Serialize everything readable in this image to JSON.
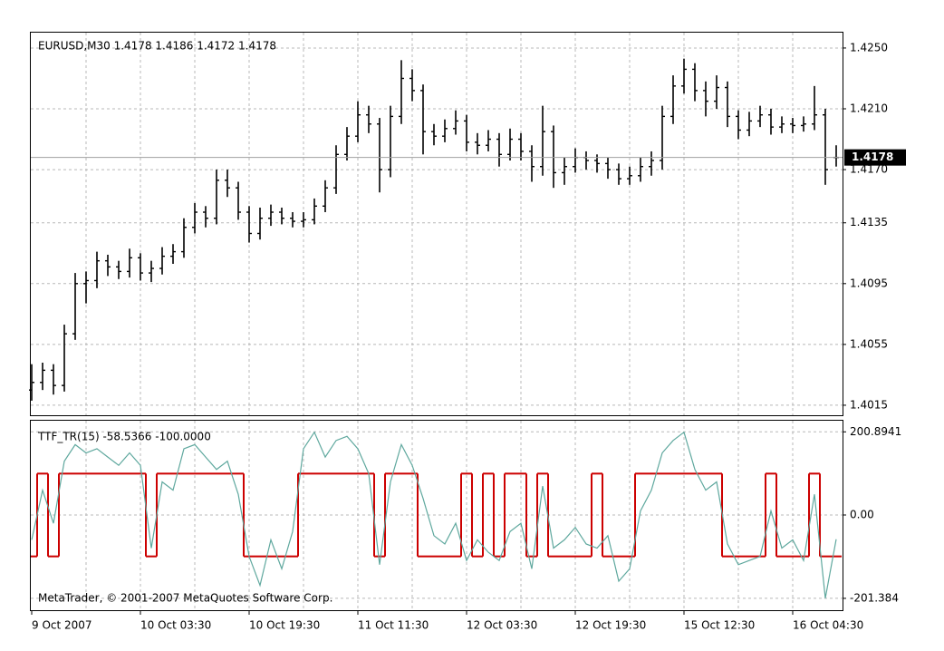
{
  "chart_data": [
    {
      "type": "ohlc",
      "title": "EURUSD,M30  1.4178 1.4186 1.4172 1.4178",
      "color": "#000000",
      "grid": true,
      "categories": [
        "9 Oct 2007",
        null,
        null,
        null,
        null,
        null,
        null,
        null,
        null,
        null,
        "10 Oct 03:30",
        null,
        null,
        null,
        null,
        null,
        null,
        null,
        null,
        null,
        "10 Oct 19:30",
        null,
        null,
        null,
        null,
        null,
        null,
        null,
        null,
        null,
        "11 Oct 11:30",
        null,
        null,
        null,
        null,
        null,
        null,
        null,
        null,
        null,
        "12 Oct 03:30",
        null,
        null,
        null,
        null,
        null,
        null,
        null,
        null,
        null,
        "12 Oct 19:30",
        null,
        null,
        null,
        null,
        null,
        null,
        null,
        null,
        null,
        "15 Oct 12:30",
        null,
        null,
        null,
        null,
        null,
        null,
        null,
        null,
        null,
        "16 Oct 04:30",
        null,
        null,
        null,
        null
      ],
      "open": [
        1.4025,
        1.403,
        1.4038,
        1.4028,
        1.4062,
        1.4095,
        1.4097,
        1.411,
        1.4106,
        1.4103,
        1.4112,
        1.4102,
        1.4105,
        1.4113,
        1.4116,
        1.4132,
        1.4142,
        1.4138,
        1.4163,
        1.4158,
        1.4142,
        1.4128,
        1.4138,
        1.4142,
        1.4138,
        1.4136,
        1.4137,
        1.4146,
        1.4158,
        1.418,
        1.4192,
        1.4206,
        1.42,
        1.417,
        1.4205,
        1.423,
        1.4222,
        1.4195,
        1.4192,
        1.4197,
        1.4202,
        1.4188,
        1.4186,
        1.419,
        1.418,
        1.419,
        1.4182,
        1.4172,
        1.4195,
        1.4168,
        1.4172,
        1.4178,
        1.4176,
        1.4174,
        1.417,
        1.4164,
        1.4166,
        1.4172,
        1.4176,
        1.4205,
        1.4225,
        1.4236,
        1.4222,
        1.4215,
        1.4224,
        1.4205,
        1.4196,
        1.4202,
        1.4206,
        1.4198,
        1.42,
        1.4199,
        1.42,
        1.4206,
        1.4178
      ],
      "high": [
        1.4042,
        1.4043,
        1.4042,
        1.4068,
        1.4102,
        1.4103,
        1.4116,
        1.4114,
        1.411,
        1.4118,
        1.4115,
        1.411,
        1.4119,
        1.4121,
        1.4138,
        1.4148,
        1.4146,
        1.417,
        1.417,
        1.4162,
        1.4146,
        1.4145,
        1.4147,
        1.4145,
        1.4142,
        1.4142,
        1.4151,
        1.4163,
        1.4186,
        1.4198,
        1.4215,
        1.4212,
        1.4204,
        1.4212,
        1.4242,
        1.4236,
        1.4226,
        1.42,
        1.4203,
        1.4209,
        1.4206,
        1.4194,
        1.4196,
        1.4194,
        1.4197,
        1.4194,
        1.4186,
        1.4212,
        1.4199,
        1.4178,
        1.4184,
        1.4182,
        1.418,
        1.4178,
        1.4174,
        1.4172,
        1.4178,
        1.4182,
        1.4212,
        1.4232,
        1.4243,
        1.424,
        1.4228,
        1.4232,
        1.4228,
        1.4209,
        1.4208,
        1.4212,
        1.421,
        1.4205,
        1.4204,
        1.4205,
        1.4225,
        1.421,
        1.4186
      ],
      "low": [
        1.4018,
        1.4025,
        1.4022,
        1.4024,
        1.4058,
        1.4082,
        1.4092,
        1.41,
        1.4098,
        1.4099,
        1.4097,
        1.4096,
        1.4101,
        1.4108,
        1.4112,
        1.4128,
        1.4132,
        1.4134,
        1.4152,
        1.4137,
        1.4122,
        1.4124,
        1.4133,
        1.4134,
        1.4132,
        1.4132,
        1.4134,
        1.4142,
        1.4154,
        1.4176,
        1.4188,
        1.4194,
        1.4155,
        1.4165,
        1.42,
        1.4215,
        1.418,
        1.4186,
        1.4188,
        1.4193,
        1.4182,
        1.418,
        1.4182,
        1.4172,
        1.4176,
        1.4176,
        1.4162,
        1.4166,
        1.4158,
        1.416,
        1.4168,
        1.417,
        1.4168,
        1.4164,
        1.416,
        1.416,
        1.4162,
        1.4166,
        1.417,
        1.42,
        1.422,
        1.4215,
        1.4205,
        1.421,
        1.4198,
        1.419,
        1.4192,
        1.4198,
        1.4193,
        1.4194,
        1.4194,
        1.4195,
        1.4196,
        1.416,
        1.4172
      ],
      "close": [
        1.403,
        1.4038,
        1.4028,
        1.4062,
        1.4095,
        1.4097,
        1.411,
        1.4106,
        1.4103,
        1.4112,
        1.4102,
        1.4105,
        1.4113,
        1.4116,
        1.4132,
        1.4142,
        1.4138,
        1.4163,
        1.4158,
        1.4142,
        1.4128,
        1.4138,
        1.4142,
        1.4138,
        1.4136,
        1.4137,
        1.4146,
        1.4158,
        1.418,
        1.4192,
        1.4206,
        1.42,
        1.417,
        1.4205,
        1.423,
        1.4222,
        1.4195,
        1.4192,
        1.4197,
        1.4202,
        1.4188,
        1.4186,
        1.419,
        1.418,
        1.419,
        1.4182,
        1.4172,
        1.4195,
        1.4168,
        1.4172,
        1.4178,
        1.4176,
        1.4174,
        1.417,
        1.4164,
        1.4166,
        1.4172,
        1.4176,
        1.4205,
        1.4225,
        1.4236,
        1.4222,
        1.4215,
        1.4224,
        1.4205,
        1.4196,
        1.4202,
        1.4206,
        1.4198,
        1.42,
        1.4199,
        1.42,
        1.4206,
        1.417,
        1.4178
      ],
      "ylim": [
        1.40084,
        1.42607
      ],
      "yticks": [
        1.4015,
        1.4055,
        1.4095,
        1.4135,
        {
          "value": 1.417,
          "label": "1.4170"
        },
        {
          "value": 1.421,
          "label": "1.4210"
        },
        {
          "value": 1.425,
          "label": "1.4250"
        }
      ],
      "price_marker": 1.4178,
      "marker_color": "#000000"
    },
    {
      "type": "line",
      "title": "TTF_TR(15) -58.5366 -100.0000",
      "annotation": "MetaTrader, © 2001-2007 MetaQuotes Software Corp.",
      "grid": true,
      "ylim": [
        -230,
        230
      ],
      "yticks": [
        200.8941,
        {
          "value": 0,
          "label": "0.00"
        },
        -201.384
      ],
      "series": [
        {
          "color": "#cc0000",
          "step": true,
          "values": [
            -100,
            100,
            -100,
            100,
            100,
            100,
            100,
            100,
            100,
            100,
            100,
            -100,
            100,
            100,
            100,
            100,
            100,
            100,
            100,
            100,
            -100,
            -100,
            -100,
            -100,
            -100,
            100,
            100,
            100,
            100,
            100,
            100,
            100,
            -100,
            100,
            100,
            100,
            -100,
            -100,
            -100,
            -100,
            100,
            -100,
            100,
            -100,
            100,
            100,
            -100,
            100,
            -100,
            -100,
            -100,
            -100,
            100,
            -100,
            -100,
            -100,
            100,
            100,
            100,
            100,
            100,
            100,
            100,
            100,
            -100,
            -100,
            -100,
            -100,
            100,
            -100,
            -100,
            -100,
            100,
            -100,
            -100
          ]
        },
        {
          "color": "#5fa89e",
          "step": false,
          "values": [
            -60,
            60,
            -20,
            130,
            170,
            150,
            160,
            140,
            120,
            150,
            120,
            -80,
            80,
            60,
            160,
            170,
            140,
            110,
            130,
            50,
            -100,
            -170,
            -60,
            -130,
            -40,
            160,
            200,
            140,
            180,
            190,
            160,
            100,
            -120,
            80,
            170,
            120,
            40,
            -50,
            -70,
            -20,
            -110,
            -60,
            -90,
            -110,
            -40,
            -20,
            -130,
            70,
            -80,
            -60,
            -30,
            -70,
            -80,
            -50,
            -160,
            -130,
            10,
            60,
            150,
            180,
            200,
            110,
            60,
            80,
            -70,
            -120,
            -110,
            -100,
            10,
            -80,
            -60,
            -110,
            50,
            -201,
            -58.5366
          ]
        }
      ]
    }
  ]
}
